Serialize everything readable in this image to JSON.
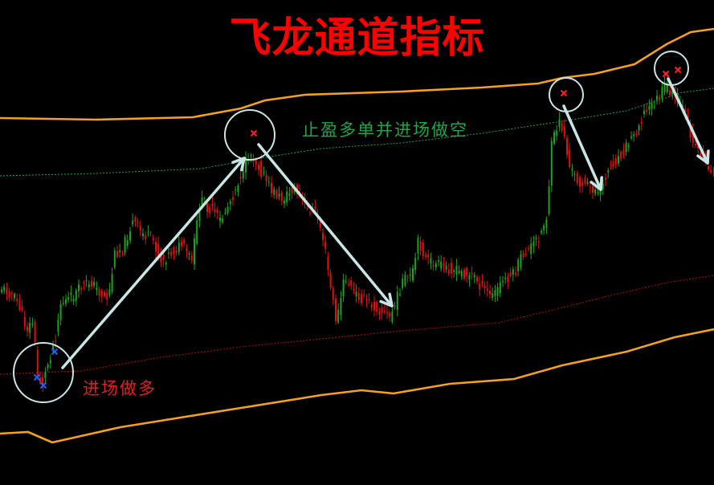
{
  "title": "飞龙通道指标",
  "annotations": {
    "exit_note": "止盈多单并进场做空",
    "entry_note": "进场做多"
  },
  "colors": {
    "background": "#000000",
    "title": "#ff0000",
    "channel_band": "#f4a020",
    "upper_signal_line": "#1fa64a",
    "lower_signal_line": "#b01010",
    "candle_up": "#1fa21f",
    "candle_down": "#e01010",
    "arrow": "#c8e6e6",
    "sell_marker": "#ff2020",
    "buy_marker": "#2060ff"
  },
  "chart_data": {
    "type": "candlestick",
    "title": "飞龙通道指标",
    "xlabel": "",
    "ylabel": "",
    "axes_visible": false,
    "grid": false,
    "series": [
      {
        "kind": "price",
        "style": "candlestick"
      },
      {
        "kind": "channel_upper",
        "style": "solid",
        "color": "#f4a020"
      },
      {
        "kind": "channel_lower",
        "style": "solid",
        "color": "#f4a020"
      },
      {
        "kind": "upper_signal",
        "style": "dotted",
        "color": "#1fa64a"
      },
      {
        "kind": "lower_signal",
        "style": "dotted",
        "color": "#b01010"
      }
    ],
    "signals": [
      {
        "type": "buy",
        "marker": "x",
        "label": "进场做多"
      },
      {
        "type": "sell",
        "marker": "x",
        "label": "止盈多单并进场做空"
      },
      {
        "type": "sell",
        "marker": "x"
      },
      {
        "type": "sell",
        "marker": "x"
      },
      {
        "type": "sell",
        "marker": "x"
      }
    ],
    "arrows": [
      {
        "direction": "up"
      },
      {
        "direction": "down"
      },
      {
        "direction": "down"
      },
      {
        "direction": "down"
      }
    ]
  }
}
